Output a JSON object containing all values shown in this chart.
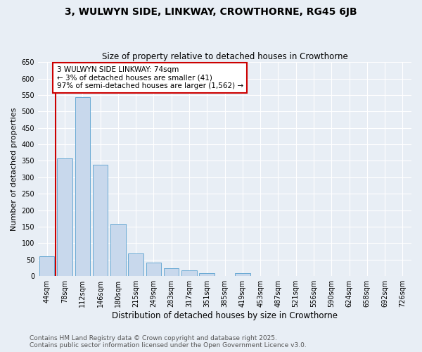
{
  "title1": "3, WULWYN SIDE, LINKWAY, CROWTHORNE, RG45 6JB",
  "title2": "Size of property relative to detached houses in Crowthorne",
  "xlabel": "Distribution of detached houses by size in Crowthorne",
  "ylabel": "Number of detached properties",
  "categories": [
    "44sqm",
    "78sqm",
    "112sqm",
    "146sqm",
    "180sqm",
    "215sqm",
    "249sqm",
    "283sqm",
    "317sqm",
    "351sqm",
    "385sqm",
    "419sqm",
    "453sqm",
    "487sqm",
    "521sqm",
    "556sqm",
    "590sqm",
    "624sqm",
    "658sqm",
    "692sqm",
    "726sqm"
  ],
  "values": [
    60,
    357,
    543,
    338,
    158,
    68,
    42,
    23,
    18,
    8,
    0,
    8,
    1,
    0,
    0,
    1,
    0,
    0,
    1,
    0,
    1
  ],
  "bar_color": "#c8d8ec",
  "bar_edge_color": "#6aaad4",
  "vline_color": "#cc0000",
  "vline_x": 0.5,
  "annotation_title": "3 WULWYN SIDE LINKWAY: 74sqm",
  "annotation_line1": "← 3% of detached houses are smaller (41)",
  "annotation_line2": "97% of semi-detached houses are larger (1,562) →",
  "annotation_box_color": "#cc0000",
  "bg_color": "#e8eef5",
  "plot_bg_color": "#e8eef5",
  "grid_color": "#ffffff",
  "ylim": [
    0,
    650
  ],
  "yticks": [
    0,
    50,
    100,
    150,
    200,
    250,
    300,
    350,
    400,
    450,
    500,
    550,
    600,
    650
  ],
  "footer1": "Contains HM Land Registry data © Crown copyright and database right 2025.",
  "footer2": "Contains public sector information licensed under the Open Government Licence v3.0.",
  "title1_fontsize": 10,
  "title2_fontsize": 8.5,
  "xlabel_fontsize": 8.5,
  "ylabel_fontsize": 8,
  "tick_fontsize": 7,
  "annotation_fontsize": 7.5,
  "footer_fontsize": 6.5
}
